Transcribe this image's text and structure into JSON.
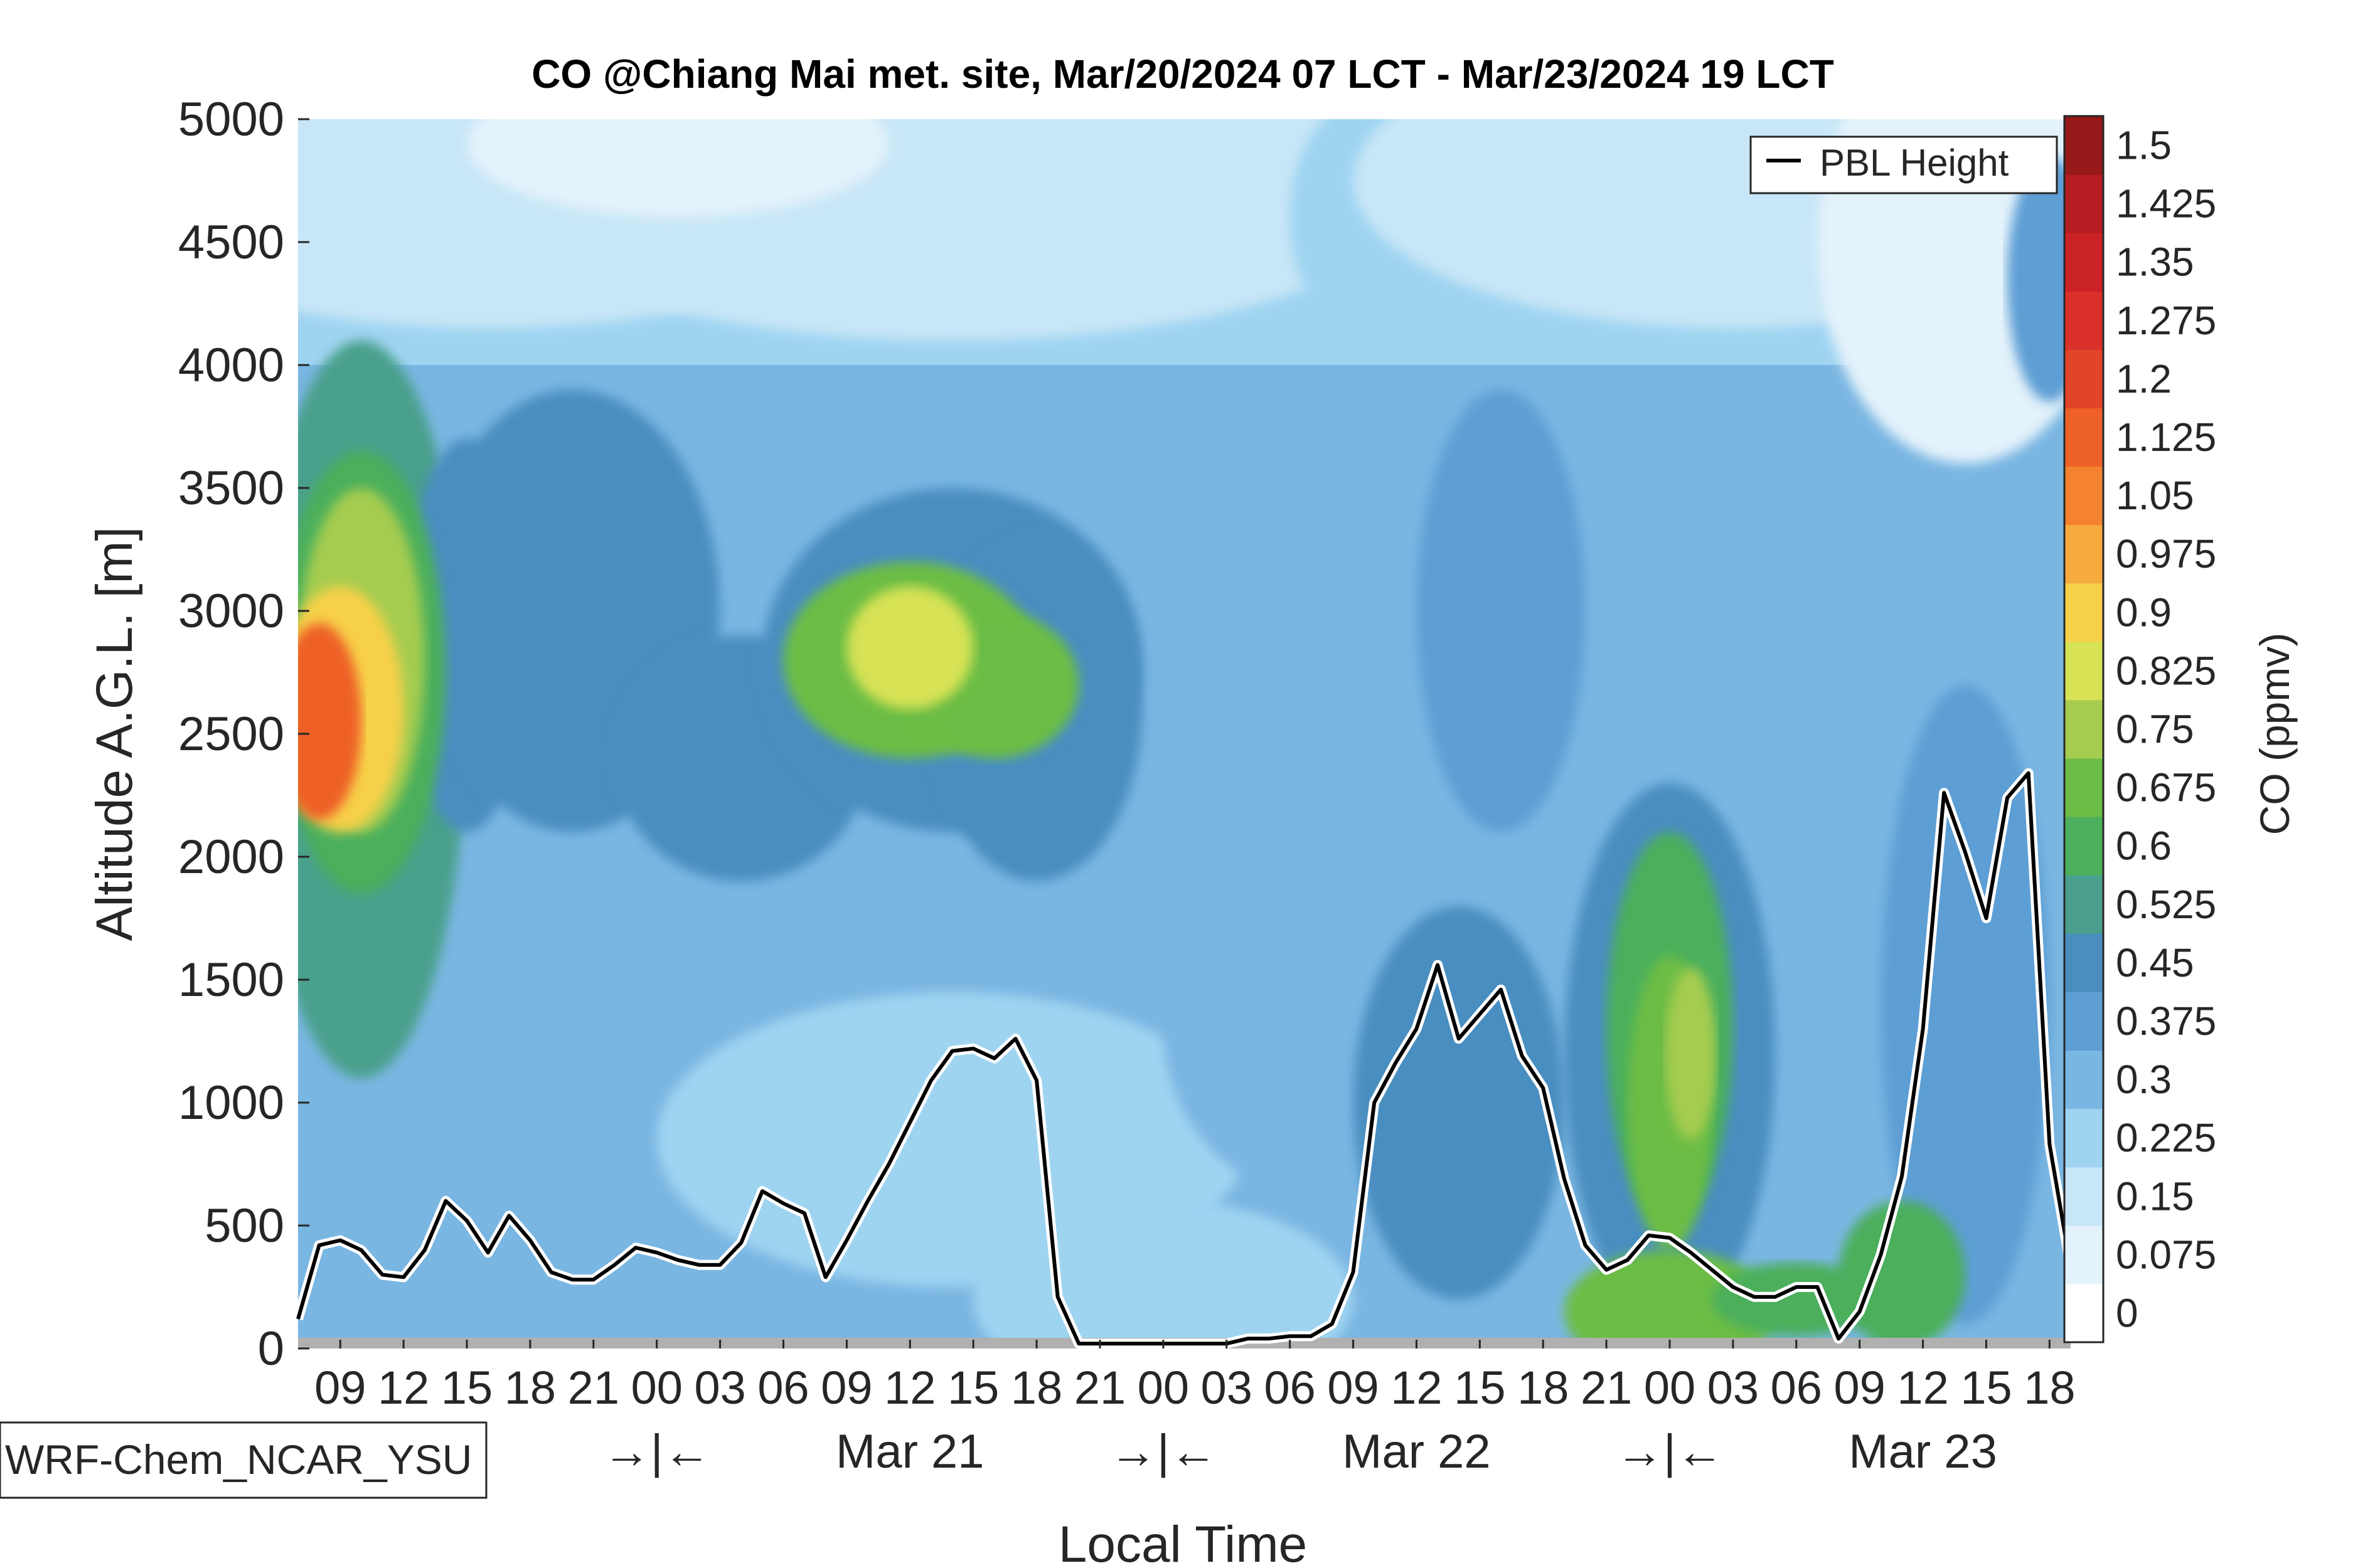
{
  "chart_data": {
    "type": "heatmap",
    "title": "CO @Chiang Mai met. site, Mar/20/2024 07 LCT - Mar/23/2024 19 LCT",
    "xlabel": "Local Time",
    "ylabel": "Altitude A.G.L. [m]",
    "colorbar_label": "CO (ppmv)",
    "ylim": [
      0,
      5000
    ],
    "yticks": [
      0,
      500,
      1000,
      1500,
      2000,
      2500,
      3000,
      3500,
      4000,
      4500,
      5000
    ],
    "xlim_hours": [
      7,
      91
    ],
    "xticks": [
      {
        "h": 9,
        "label": "09"
      },
      {
        "h": 12,
        "label": "12"
      },
      {
        "h": 15,
        "label": "15"
      },
      {
        "h": 18,
        "label": "18"
      },
      {
        "h": 21,
        "label": "21"
      },
      {
        "h": 24,
        "label": "00"
      },
      {
        "h": 27,
        "label": "03"
      },
      {
        "h": 30,
        "label": "06"
      },
      {
        "h": 33,
        "label": "09"
      },
      {
        "h": 36,
        "label": "12"
      },
      {
        "h": 39,
        "label": "15"
      },
      {
        "h": 42,
        "label": "18"
      },
      {
        "h": 45,
        "label": "21"
      },
      {
        "h": 48,
        "label": "00"
      },
      {
        "h": 51,
        "label": "03"
      },
      {
        "h": 54,
        "label": "06"
      },
      {
        "h": 57,
        "label": "09"
      },
      {
        "h": 60,
        "label": "12"
      },
      {
        "h": 63,
        "label": "15"
      },
      {
        "h": 66,
        "label": "18"
      },
      {
        "h": 69,
        "label": "21"
      },
      {
        "h": 72,
        "label": "00"
      },
      {
        "h": 75,
        "label": "03"
      },
      {
        "h": 78,
        "label": "06"
      },
      {
        "h": 81,
        "label": "09"
      },
      {
        "h": 84,
        "label": "12"
      },
      {
        "h": 87,
        "label": "15"
      },
      {
        "h": 90,
        "label": "18"
      }
    ],
    "day_labels": [
      {
        "h": 24,
        "label": "→|←"
      },
      {
        "h": 36,
        "label": "Mar 21"
      },
      {
        "h": 48,
        "label": "→|←"
      },
      {
        "h": 60,
        "label": "Mar 22"
      },
      {
        "h": 72,
        "label": "→|←"
      },
      {
        "h": 84,
        "label": "Mar 23"
      }
    ],
    "colorbar_levels": [
      0,
      0.075,
      0.15,
      0.225,
      0.3,
      0.375,
      0.45,
      0.525,
      0.6,
      0.675,
      0.75,
      0.825,
      0.9,
      0.975,
      1.05,
      1.125,
      1.2,
      1.275,
      1.35,
      1.425,
      1.5
    ],
    "colorbar_labels": [
      "0",
      "0.075",
      "0.15",
      "0.225",
      "0.3",
      "0.375",
      "0.45",
      "0.525",
      "0.6",
      "0.675",
      "0.75",
      "0.825",
      "0.9",
      "0.975",
      "1.05",
      "1.125",
      "1.2",
      "1.275",
      "1.35",
      "1.425",
      "1.5"
    ],
    "colormap": [
      "#ffffff",
      "#e3f2fb",
      "#c7e6f7",
      "#9fd4f1",
      "#7ab6e2",
      "#5d9ed4",
      "#4a8ec0",
      "#4aa08c",
      "#4caf5c",
      "#6cbd45",
      "#a5cc4f",
      "#d7e254",
      "#f7d04a",
      "#f7ab3e",
      "#f4822e",
      "#ee6128",
      "#e24428",
      "#d9302a",
      "#cb2226",
      "#b51c22",
      "#961818"
    ],
    "grid": false,
    "legend": {
      "position": "top-right",
      "entries": [
        "PBL Height"
      ]
    },
    "pbl_height_series": {
      "name": "PBL Height",
      "x": [
        7,
        8,
        9,
        10,
        11,
        12,
        13,
        14,
        15,
        16,
        17,
        18,
        19,
        20,
        21,
        22,
        23,
        24,
        25,
        26,
        27,
        28,
        29,
        30,
        31,
        32,
        33,
        34,
        35,
        36,
        37,
        38,
        39,
        40,
        41,
        42,
        43,
        44,
        45,
        46,
        47,
        48,
        49,
        50,
        51,
        52,
        53,
        54,
        55,
        56,
        57,
        58,
        59,
        60,
        61,
        62,
        63,
        64,
        65,
        66,
        67,
        68,
        69,
        70,
        71,
        72,
        73,
        74,
        75,
        76,
        77,
        78,
        79,
        80,
        81,
        82,
        83,
        84,
        85,
        86,
        87,
        88,
        89,
        90,
        91
      ],
      "y": [
        120,
        420,
        440,
        400,
        300,
        290,
        400,
        600,
        520,
        390,
        540,
        440,
        310,
        280,
        280,
        340,
        410,
        390,
        360,
        340,
        340,
        430,
        640,
        590,
        550,
        290,
        440,
        600,
        750,
        920,
        1090,
        1210,
        1220,
        1180,
        1260,
        1090,
        210,
        20,
        20,
        20,
        20,
        20,
        20,
        20,
        20,
        40,
        40,
        50,
        50,
        100,
        310,
        1000,
        1160,
        1300,
        1560,
        1260,
        1360,
        1460,
        1190,
        1060,
        690,
        420,
        320,
        360,
        460,
        450,
        390,
        320,
        250,
        210,
        210,
        250,
        250,
        40,
        150,
        380,
        700,
        1300,
        2260,
        2020,
        1750,
        2240,
        2340,
        830,
        330
      ]
    },
    "model_label": "WRF-Chem_NCAR_YSU"
  }
}
